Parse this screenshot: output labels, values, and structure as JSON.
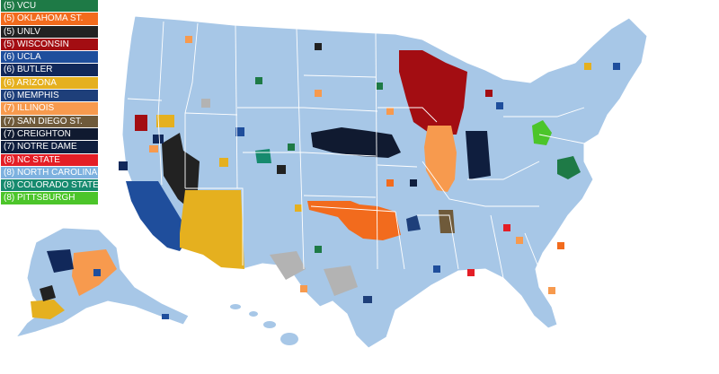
{
  "colors": {
    "background_states": "#a7c7e7",
    "borders": "#ffffff",
    "gray": "#b3b3b3"
  },
  "legend": [
    {
      "seed": "(5)",
      "team": "VCU",
      "color": "#1e7a46"
    },
    {
      "seed": "(5)",
      "team": "OKLAHOMA ST.",
      "color": "#f26b1d"
    },
    {
      "seed": "(5)",
      "team": "UNLV",
      "color": "#222222"
    },
    {
      "seed": "(5)",
      "team": "WISCONSIN",
      "color": "#a30d12"
    },
    {
      "seed": "(6)",
      "team": "UCLA",
      "color": "#1f4e9c"
    },
    {
      "seed": "(6)",
      "team": "BUTLER",
      "color": "#11285a"
    },
    {
      "seed": "(6)",
      "team": "ARIZONA",
      "color": "#e5b01f"
    },
    {
      "seed": "(6)",
      "team": "MEMPHIS",
      "color": "#1e3f7a"
    },
    {
      "seed": "(7)",
      "team": "ILLINOIS",
      "color": "#f79a4e"
    },
    {
      "seed": "(7)",
      "team": "SAN DIEGO ST.",
      "color": "#6f5a3a"
    },
    {
      "seed": "(7)",
      "team": "CREIGHTON",
      "color": "#101a30"
    },
    {
      "seed": "(7)",
      "team": "NOTRE DAME",
      "color": "#0f1e3e"
    },
    {
      "seed": "(8)",
      "team": "NC STATE",
      "color": "#e41e26"
    },
    {
      "seed": "(8)",
      "team": "NORTH CAROLINA",
      "color": "#7db1df"
    },
    {
      "seed": "(8)",
      "team": "COLORADO STATE",
      "color": "#168a6e"
    },
    {
      "seed": "(8)",
      "team": "PITTSBURGH",
      "color": "#4cc52a"
    }
  ]
}
